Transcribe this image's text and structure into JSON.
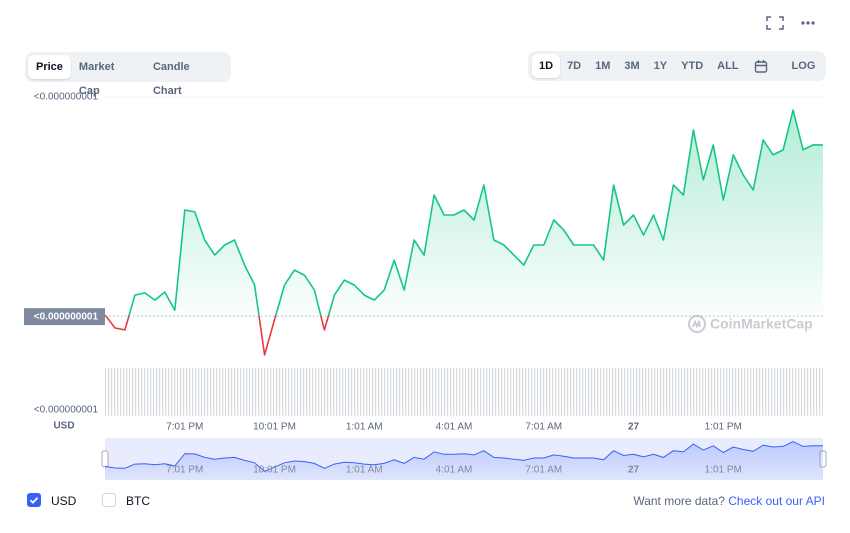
{
  "header": {
    "tabs": [
      {
        "label": "Price",
        "active": true
      },
      {
        "label": "Market Cap",
        "active": false
      },
      {
        "label": "Candle Chart",
        "active": false
      }
    ],
    "ranges": [
      {
        "label": "1D",
        "active": true
      },
      {
        "label": "7D",
        "active": false
      },
      {
        "label": "1M",
        "active": false
      },
      {
        "label": "3M",
        "active": false
      },
      {
        "label": "1Y",
        "active": false
      },
      {
        "label": "YTD",
        "active": false
      },
      {
        "label": "ALL",
        "active": false
      }
    ],
    "log_label": "LOG"
  },
  "chart_data": {
    "type": "line",
    "y_label": "USD",
    "watermark": "CoinMarketCap",
    "up_color": "#16c784",
    "down_color": "#ea3943",
    "grid": true,
    "categories": [
      null,
      null,
      null,
      null,
      null,
      null,
      null,
      null,
      "7:01 PM",
      null,
      null,
      null,
      null,
      null,
      null,
      null,
      null,
      "10:01 PM",
      null,
      null,
      null,
      null,
      null,
      null,
      null,
      null,
      "1:01 AM",
      null,
      null,
      null,
      null,
      null,
      null,
      null,
      null,
      "4:01 AM",
      null,
      null,
      null,
      null,
      null,
      null,
      null,
      null,
      "7:01 AM",
      null,
      null,
      null,
      null,
      null,
      null,
      null,
      null,
      "27",
      null,
      null,
      null,
      null,
      null,
      null,
      null,
      null,
      "1:01 PM",
      null,
      null,
      null,
      null,
      null,
      null,
      null,
      null,
      null,
      null
    ],
    "values": [
      5.304e-10,
      5.262e-10,
      5.256e-10,
      5.367e-10,
      5.374e-10,
      5.351e-10,
      5.377e-10,
      5.319e-10,
      5.639e-10,
      5.633e-10,
      5.543e-10,
      5.495e-10,
      5.527e-10,
      5.543e-10,
      5.463e-10,
      5.399e-10,
      5.176e-10,
      5.288e-10,
      5.399e-10,
      5.447e-10,
      5.431e-10,
      5.383e-10,
      5.256e-10,
      5.367e-10,
      5.415e-10,
      5.399e-10,
      5.367e-10,
      5.351e-10,
      5.383e-10,
      5.479e-10,
      5.383e-10,
      5.543e-10,
      5.495e-10,
      5.687e-10,
      5.623e-10,
      5.623e-10,
      5.639e-10,
      5.607e-10,
      5.719e-10,
      5.543e-10,
      5.527e-10,
      5.495e-10,
      5.463e-10,
      5.527e-10,
      5.527e-10,
      5.607e-10,
      5.575e-10,
      5.527e-10,
      5.527e-10,
      5.527e-10,
      5.479e-10,
      5.719e-10,
      5.591e-10,
      5.623e-10,
      5.559e-10,
      5.623e-10,
      5.543e-10,
      5.719e-10,
      5.687e-10,
      5.895e-10,
      5.735e-10,
      5.847e-10,
      5.671e-10,
      5.815e-10,
      5.751e-10,
      5.703e-10,
      5.863e-10,
      5.815e-10,
      5.831e-10,
      5.958e-10,
      5.831e-10,
      5.847e-10,
      5.847e-10
    ],
    "ylim": [
      5e-10,
      6e-10
    ],
    "yticks": [
      {
        "value": 5e-10,
        "label": "<0.000000001",
        "highlight": false
      },
      {
        "value": 5.3e-10,
        "label": "<0.000000001",
        "highlight": true
      },
      {
        "value": 6e-10,
        "label": "<0.000000001",
        "highlight": false
      }
    ]
  },
  "footer": {
    "currencies": [
      {
        "label": "USD",
        "checked": true
      },
      {
        "label": "BTC",
        "checked": false
      }
    ],
    "prompt": "Want more data?",
    "link": "Check out our API"
  }
}
